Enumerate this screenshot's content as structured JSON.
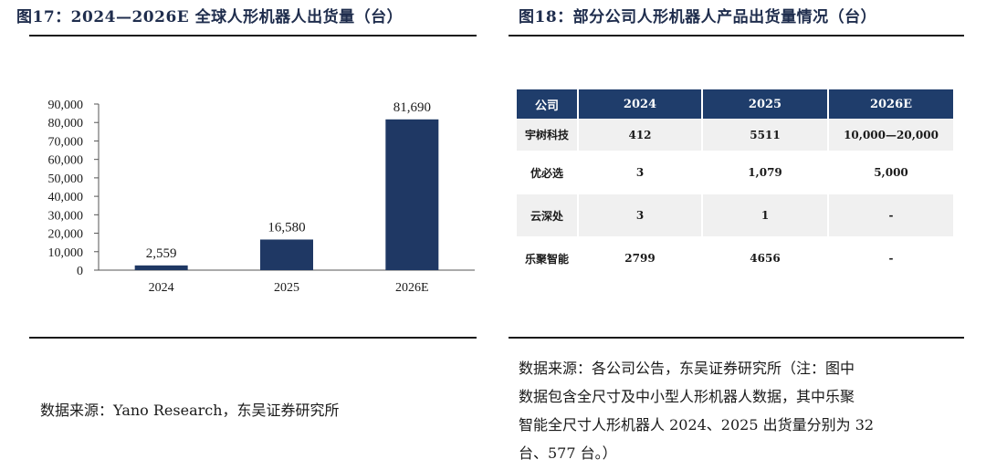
{
  "left": {
    "title": "图17：2024—2026E 全球人形机器人出货量（台）",
    "source": "数据来源：Yano Research，东吴证券研究所"
  },
  "right": {
    "title": "图18：部分公司人形机器人产品出货量情况（台）",
    "source_lines": [
      "数据来源：各公司公告，东吴证券研究所（注：图中",
      "数据包含全尺寸及中小型人形机器人数据，其中乐聚",
      "智能全尺寸人形机器人 2024、2025 出货量分别为 32",
      "台、577 台。）"
    ]
  },
  "chart_data": [
    {
      "type": "bar",
      "categories": [
        "2024",
        "2025",
        "2026E"
      ],
      "values": [
        2559,
        16580,
        81690
      ],
      "value_labels": [
        "2,559",
        "16,580",
        "81,690"
      ],
      "title": "",
      "xlabel": "",
      "ylabel": "",
      "ylim": [
        0,
        90000
      ],
      "yticks": [
        0,
        10000,
        20000,
        30000,
        40000,
        50000,
        60000,
        70000,
        80000,
        90000
      ],
      "ytick_labels": [
        "0",
        "10,000",
        "20,000",
        "30,000",
        "40,000",
        "50,000",
        "60,000",
        "70,000",
        "80,000",
        "90,000"
      ],
      "grid": false,
      "bar_color": "#1f3864"
    },
    {
      "type": "table",
      "columns": [
        "公司",
        "2024",
        "2025",
        "2026E"
      ],
      "rows": [
        [
          "宇树科技",
          "412",
          "5511",
          "10,000—20,000"
        ],
        [
          "优必选",
          "3",
          "1,079",
          "5,000"
        ],
        [
          "云深处",
          "3",
          "1",
          "-"
        ],
        [
          "乐聚智能",
          "2799",
          "4656",
          "-"
        ]
      ]
    }
  ]
}
